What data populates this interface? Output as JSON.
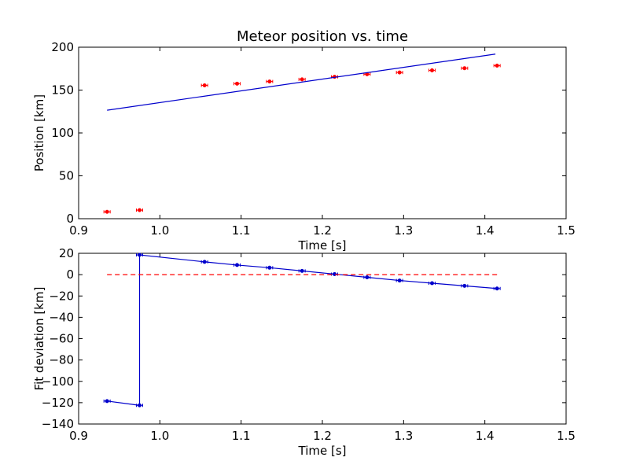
{
  "chart_data": [
    {
      "type": "scatter",
      "title": "Meteor position vs. time",
      "xlabel": "Time [s]",
      "ylabel": "Position [km]",
      "xlim": [
        0.9,
        1.5
      ],
      "ylim": [
        0,
        200
      ],
      "xticks": [
        "0.9",
        "1.0",
        "1.1",
        "1.2",
        "1.3",
        "1.4",
        "1.5"
      ],
      "yticks": [
        "0",
        "50",
        "100",
        "150",
        "200"
      ],
      "grid": false,
      "series": [
        {
          "kind": "points-with-errorbars",
          "color": "#ff0000",
          "x": [
            0.935,
            0.975,
            1.055,
            1.095,
            1.135,
            1.175,
            1.215,
            1.255,
            1.295,
            1.335,
            1.375,
            1.415
          ],
          "y": [
            8,
            10,
            155.5,
            157.5,
            160,
            162.5,
            165.5,
            168.5,
            170.5,
            173,
            175.5,
            178.5
          ]
        },
        {
          "kind": "line",
          "color": "#0000cc",
          "x": [
            0.935,
            1.413
          ],
          "y": [
            126.5,
            192
          ]
        }
      ]
    },
    {
      "type": "line",
      "title": "",
      "xlabel": "Time [s]",
      "ylabel": "Fit deviation [km]",
      "xlim": [
        0.9,
        1.5
      ],
      "ylim": [
        -140,
        20
      ],
      "xticks": [
        "0.9",
        "1.0",
        "1.1",
        "1.2",
        "1.3",
        "1.4",
        "1.5"
      ],
      "yticks": [
        "20",
        "0",
        "−20",
        "−40",
        "−60",
        "−80",
        "−100",
        "−120",
        "−140"
      ],
      "grid": false,
      "series": [
        {
          "kind": "line-with-markers",
          "color": "#0000cc",
          "x": [
            0.935,
            0.975,
            0.975,
            1.055,
            1.095,
            1.135,
            1.175,
            1.215,
            1.255,
            1.295,
            1.335,
            1.375,
            1.415
          ],
          "y": [
            -118.5,
            -122.5,
            18.5,
            12,
            9,
            6.5,
            3.5,
            0.5,
            -2.5,
            -5.5,
            -8,
            -10.5,
            -13
          ]
        },
        {
          "kind": "dashed-line",
          "color": "#ff0000",
          "x": [
            0.935,
            1.415
          ],
          "y": [
            0,
            0
          ]
        }
      ]
    }
  ]
}
